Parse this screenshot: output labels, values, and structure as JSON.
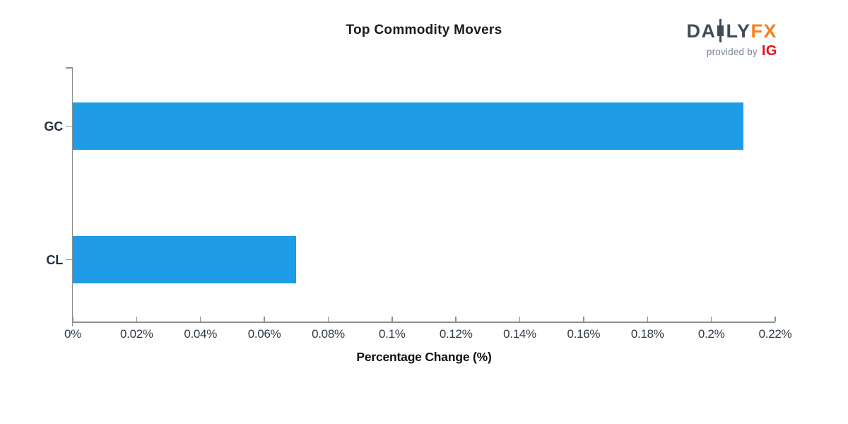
{
  "logo": {
    "text_before_candle": "DA",
    "text_after_candle": "LY",
    "fx": "FX",
    "provided_by": "provided by",
    "ig": "IG",
    "colors": {
      "daily": "#414C59",
      "fx": "#F68121",
      "provided_by": "#7B8591",
      "ig": "#E8121C"
    }
  },
  "chart_data": {
    "type": "bar",
    "orientation": "horizontal",
    "title": "Top Commodity Movers",
    "categories": [
      "GC",
      "CL"
    ],
    "values": [
      0.21,
      0.07
    ],
    "unit": "%",
    "xlabel": "Percentage Change (%)",
    "ylabel": "",
    "xlim": [
      0,
      0.22
    ],
    "xticks": [
      0,
      0.02,
      0.04,
      0.06,
      0.08,
      0.1,
      0.12,
      0.14,
      0.16,
      0.18,
      0.2,
      0.22
    ],
    "xtick_labels": [
      "0%",
      "0.02%",
      "0.04%",
      "0.06%",
      "0.08%",
      "0.1%",
      "0.12%",
      "0.14%",
      "0.16%",
      "0.18%",
      "0.2%",
      "0.22%"
    ],
    "grid": false,
    "legend": null,
    "bar_color": "#1E9CE6",
    "axis_color": "#8E8E8E",
    "tick_label_color": "#2E3B4B",
    "category_label_color": "#24303F",
    "title_color": "#1A1A1A",
    "xlabel_color": "#111111"
  }
}
